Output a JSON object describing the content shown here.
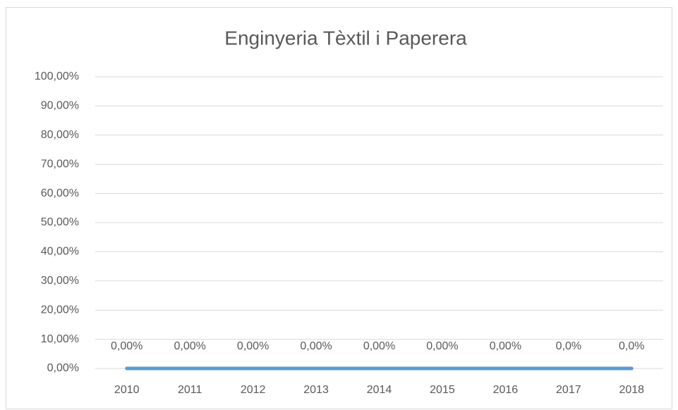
{
  "chart_data": {
    "type": "line",
    "title": "Enginyeria Tèxtil i Paperera",
    "categories": [
      "2010",
      "2011",
      "2012",
      "2013",
      "2014",
      "2015",
      "2016",
      "2017",
      "2018"
    ],
    "series": [
      {
        "name": "Enginyeria Tèxtil i Paperera",
        "color": "#5b9bd5",
        "values": [
          0,
          0,
          0,
          0,
          0,
          0,
          0,
          0,
          0
        ],
        "value_labels": [
          "0,00%",
          "0,00%",
          "0,00%",
          "0,00%",
          "0,00%",
          "0,00%",
          "0,00%",
          "0,0%",
          "0,0%"
        ]
      }
    ],
    "ylim": [
      0,
      100
    ],
    "yticks": [
      {
        "value": 0,
        "label": "0,00%"
      },
      {
        "value": 10,
        "label": "10,00%"
      },
      {
        "value": 20,
        "label": "20,00%"
      },
      {
        "value": 30,
        "label": "30,00%"
      },
      {
        "value": 40,
        "label": "40,00%"
      },
      {
        "value": 50,
        "label": "50,00%"
      },
      {
        "value": 60,
        "label": "60,00%"
      },
      {
        "value": 70,
        "label": "70,00%"
      },
      {
        "value": 80,
        "label": "80,00%"
      },
      {
        "value": 90,
        "label": "90,00%"
      },
      {
        "value": 100,
        "label": "100,00%"
      }
    ],
    "grid": true
  }
}
